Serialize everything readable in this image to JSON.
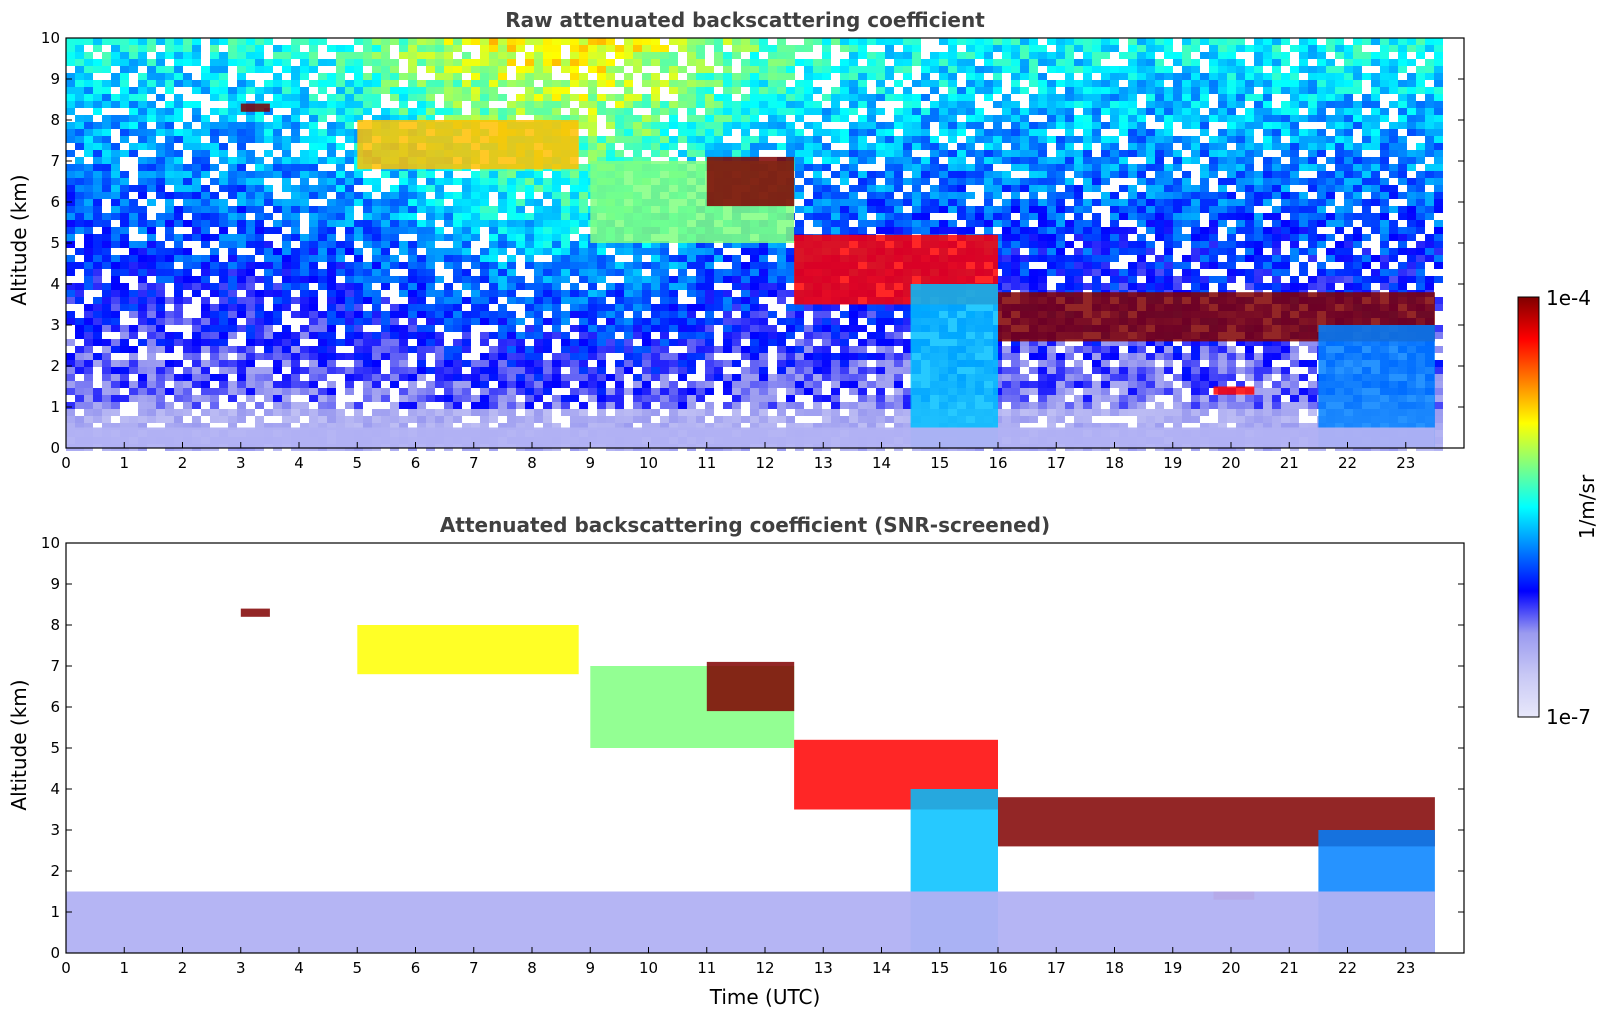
{
  "chart_data": [
    {
      "type": "heatmap",
      "title": "Raw attenuated backscattering coefficient",
      "xlabel": "",
      "ylabel": "Altitude (km)",
      "xlim": [
        0,
        24
      ],
      "ylim": [
        0,
        10
      ],
      "xticks": [
        "0",
        "1",
        "2",
        "3",
        "4",
        "5",
        "6",
        "7",
        "8",
        "9",
        "10",
        "11",
        "12",
        "13",
        "14",
        "15",
        "16",
        "17",
        "18",
        "19",
        "20",
        "21",
        "22",
        "23"
      ],
      "yticks": [
        "0",
        "1",
        "2",
        "3",
        "4",
        "5",
        "6",
        "7",
        "8",
        "9",
        "10"
      ],
      "data_end_time": 23.5,
      "noise_gradient": "noise increases with altitude; daytime (5–13 UTC) noise strongest (yellow–orange above 6 km)",
      "features": [
        {
          "kind": "cloud",
          "t": [
            3.0,
            3.5
          ],
          "z": [
            8.2,
            8.4
          ],
          "level": 1.0
        },
        {
          "kind": "cirrus",
          "t": [
            5.0,
            8.8
          ],
          "z": [
            6.8,
            8.0
          ],
          "level": 0.75
        },
        {
          "kind": "cirrus",
          "t": [
            9.0,
            12.5
          ],
          "z": [
            5.0,
            7.0
          ],
          "level": 0.6
        },
        {
          "kind": "cloud",
          "t": [
            11.0,
            12.5
          ],
          "z": [
            5.9,
            7.1
          ],
          "level": 1.0
        },
        {
          "kind": "descending cloud",
          "t": [
            12.5,
            16.0
          ],
          "z": [
            3.5,
            5.2
          ],
          "level": 0.9
        },
        {
          "kind": "precipitation",
          "t": [
            14.5,
            16.0
          ],
          "z": [
            0.0,
            4.0
          ],
          "level": 0.45
        },
        {
          "kind": "cloud layer",
          "t": [
            16.0,
            23.5
          ],
          "z": [
            2.6,
            3.8
          ],
          "level": 1.0
        },
        {
          "kind": "cloud",
          "t": [
            19.7,
            20.4
          ],
          "z": [
            1.3,
            1.5
          ],
          "level": 0.9
        },
        {
          "kind": "precipitation",
          "t": [
            21.5,
            23.5
          ],
          "z": [
            0.0,
            3.0
          ],
          "level": 0.4
        },
        {
          "kind": "boundary layer",
          "t": [
            0.0,
            23.5
          ],
          "z": [
            0.0,
            0.5
          ],
          "level": 0.15
        }
      ]
    },
    {
      "type": "heatmap",
      "title": "Attenuated backscattering coefficient (SNR-screened)",
      "xlabel": "Time (UTC)",
      "ylabel": "Altitude (km)",
      "xlim": [
        0,
        24
      ],
      "ylim": [
        0,
        10
      ],
      "xticks": [
        "0",
        "1",
        "2",
        "3",
        "4",
        "5",
        "6",
        "7",
        "8",
        "9",
        "10",
        "11",
        "12",
        "13",
        "14",
        "15",
        "16",
        "17",
        "18",
        "19",
        "20",
        "21",
        "22",
        "23"
      ],
      "yticks": [
        "0",
        "1",
        "2",
        "3",
        "4",
        "5",
        "6",
        "7",
        "8",
        "9",
        "10"
      ],
      "data_end_time": 23.5,
      "noise_gradient": "noise removed (white background)",
      "features": [
        {
          "kind": "cloud",
          "t": [
            3.0,
            3.5
          ],
          "z": [
            8.2,
            8.4
          ],
          "level": 1.0
        },
        {
          "kind": "cirrus",
          "t": [
            5.0,
            8.8
          ],
          "z": [
            6.8,
            8.0
          ],
          "level": 0.7
        },
        {
          "kind": "cirrus",
          "t": [
            9.0,
            12.5
          ],
          "z": [
            5.0,
            7.0
          ],
          "level": 0.6
        },
        {
          "kind": "cloud",
          "t": [
            11.0,
            12.5
          ],
          "z": [
            5.9,
            7.1
          ],
          "level": 1.0
        },
        {
          "kind": "descending cloud",
          "t": [
            12.5,
            16.0
          ],
          "z": [
            3.5,
            5.2
          ],
          "level": 0.9
        },
        {
          "kind": "precipitation",
          "t": [
            14.5,
            16.0
          ],
          "z": [
            0.0,
            4.0
          ],
          "level": 0.45
        },
        {
          "kind": "cloud layer",
          "t": [
            16.0,
            23.5
          ],
          "z": [
            2.6,
            3.8
          ],
          "level": 1.0
        },
        {
          "kind": "cloud",
          "t": [
            19.7,
            20.4
          ],
          "z": [
            1.3,
            1.5
          ],
          "level": 0.9
        },
        {
          "kind": "precipitation",
          "t": [
            21.5,
            23.5
          ],
          "z": [
            0.0,
            3.0
          ],
          "level": 0.4
        },
        {
          "kind": "boundary layer",
          "t": [
            0.0,
            23.5
          ],
          "z": [
            0.0,
            1.5
          ],
          "level": 0.15
        }
      ]
    }
  ],
  "colorbar": {
    "label": "1/m/sr",
    "max_label": "1e-4",
    "min_label": "1e-7",
    "colormap": "jet",
    "colors": [
      "#e8e8fa",
      "#c8c8f5",
      "#9a9af0",
      "#0000ff",
      "#0080ff",
      "#00ffff",
      "#80ff80",
      "#ffff00",
      "#ff8000",
      "#ff0000",
      "#800000"
    ]
  }
}
